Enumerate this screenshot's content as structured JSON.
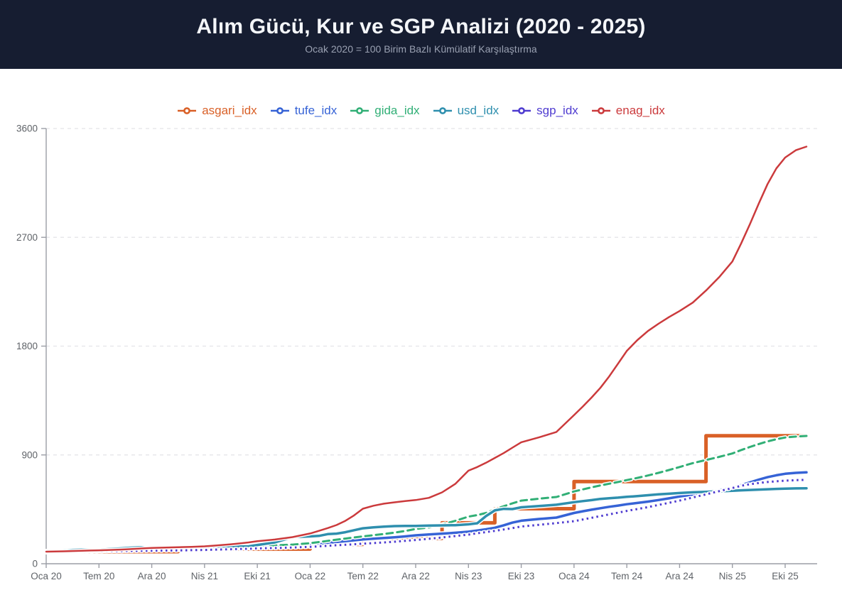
{
  "chart_data": {
    "type": "line",
    "title": "Alım Gücü, Kur ve SGP Analizi (2020 - 2025)",
    "subtitle": "Ocak 2020 = 100 Birim Bazlı Kümülatif Karşılaştırma",
    "legend_position": "top",
    "grid": "horizontal-dashed",
    "x_axis": {
      "tick_labels": [
        "Oca 20",
        "Tem 20",
        "Ara 20",
        "Nis 21",
        "Eki 21",
        "Oca 22",
        "Tem 22",
        "Ara 22",
        "Nis 23",
        "Eki 23",
        "Oca 24",
        "Tem 24",
        "Ara 24",
        "Nis 25",
        "Eki 25"
      ],
      "tick_months": [
        0,
        6,
        11,
        15,
        21,
        24,
        30,
        35,
        39,
        45,
        48,
        54,
        59,
        63,
        69
      ],
      "months_start": "Oca 20",
      "months_total": 72
    },
    "y_axis": {
      "ticks": [
        0,
        900,
        1800,
        2700,
        3600
      ],
      "min": 0,
      "max": 3600
    },
    "series": [
      {
        "name": "asgari_idx",
        "color": "#D96027",
        "style": "step",
        "width": 5,
        "steps": [
          [
            0,
            100
          ],
          [
            13,
            121
          ],
          [
            24,
            160
          ],
          [
            30,
            210
          ],
          [
            37,
            338
          ],
          [
            42,
            455
          ],
          [
            48,
            680
          ],
          [
            61,
            1058
          ]
        ],
        "end_month": 71
      },
      {
        "name": "tufe_idx",
        "color": "#3663D6",
        "style": "solid",
        "width": 3.5,
        "values": [
          100,
          101,
          102,
          103,
          104,
          105,
          106,
          107,
          108,
          110,
          112,
          114,
          116,
          117,
          119,
          121,
          123,
          125,
          127,
          129,
          132,
          136,
          141,
          148,
          155,
          163,
          172,
          180,
          187,
          194,
          201,
          207,
          213,
          219,
          226,
          235,
          242,
          249,
          256,
          265,
          275,
          285,
          298,
          318,
          340,
          356,
          370,
          382,
          420,
          434,
          447,
          459,
          471,
          481,
          492,
          503,
          514,
          527,
          541,
          556,
          572,
          589,
          607,
          627,
          650,
          673,
          696,
          716,
          732,
          744,
          752,
          756
        ]
      },
      {
        "name": "gida_idx",
        "color": "#31AF76",
        "style": "dashed",
        "width": 3,
        "values": [
          100,
          102,
          103,
          105,
          106,
          107,
          108,
          109,
          111,
          113,
          116,
          120,
          122,
          124,
          126,
          128,
          130,
          133,
          136,
          139,
          143,
          147,
          152,
          158,
          170,
          179,
          189,
          199,
          208,
          217,
          226,
          236,
          246,
          257,
          271,
          288,
          300,
          325,
          355,
          390,
          402,
          420,
          450,
          475,
          500,
          522,
          538,
          552,
          598,
          615,
          632,
          648,
          662,
          676,
          692,
          710,
          730,
          752,
          775,
          800,
          832,
          858,
          884,
          912,
          940,
          966,
          990,
          1012,
          1030,
          1044,
          1052,
          1057
        ]
      },
      {
        "name": "usd_idx",
        "color": "#2E8FAE",
        "style": "solid",
        "width": 3.5,
        "values": [
          100,
          103,
          108,
          114,
          116,
          114,
          115,
          121,
          126,
          132,
          137,
          128,
          125,
          119,
          126,
          136,
          141,
          144,
          145,
          143,
          144,
          155,
          176,
          220,
          226,
          230,
          245,
          249,
          261,
          277,
          293,
          301,
          307,
          311,
          313,
          313,
          316,
          317,
          319,
          326,
          335,
          394,
          441,
          454,
          452,
          467,
          477,
          488,
          509,
          518,
          526,
          536,
          542,
          547,
          553,
          559,
          567,
          574,
          579,
          585,
          591,
          595,
          599,
          603,
          607,
          610,
          613,
          616,
          619,
          621,
          623,
          624
        ]
      },
      {
        "name": "sgp_idx",
        "color": "#4E3BD0",
        "style": "dotted",
        "width": 3,
        "values": [
          100,
          101,
          101,
          102,
          103,
          103,
          104,
          105,
          105,
          106,
          107,
          108,
          109,
          110,
          112,
          114,
          116,
          118,
          120,
          122,
          124,
          127,
          130,
          134,
          140,
          144,
          148,
          153,
          157,
          161,
          166,
          171,
          176,
          182,
          189,
          196,
          206,
          217,
          229,
          241,
          252,
          262,
          272,
          283,
          295,
          308,
          322,
          336,
          352,
          366,
          380,
          394,
          408,
          422,
          437,
          452,
          468,
          486,
          504,
          522,
          548,
          574,
          600,
          626,
          645,
          658,
          668,
          676,
          682,
          687,
          691,
          694
        ]
      },
      {
        "name": "enag_idx",
        "color": "#CB3A3C",
        "style": "solid",
        "width": 2.5,
        "values": [
          100,
          101,
          103,
          105,
          107,
          109,
          111,
          114,
          117,
          121,
          126,
          131,
          134,
          137,
          140,
          144,
          149,
          155,
          161,
          168,
          176,
          186,
          200,
          220,
          250,
          272,
          295,
          320,
          355,
          400,
          455,
          480,
          497,
          508,
          518,
          527,
          545,
          590,
          660,
          770,
          800,
          835,
          875,
          915,
          960,
          1005,
          1045,
          1090,
          1230,
          1300,
          1375,
          1455,
          1550,
          1655,
          1760,
          1850,
          1925,
          1985,
          2040,
          2090,
          2160,
          2260,
          2370,
          2500,
          2650,
          2810,
          2980,
          3140,
          3270,
          3360,
          3420,
          3450
        ]
      }
    ],
    "colors": {
      "header_bg": "#161D31",
      "subtitle_text": "#9aa1b2",
      "grid_line": "#e4e4e8",
      "axis_line": "#9b9ea6",
      "axis_text": "#5f6368"
    }
  }
}
